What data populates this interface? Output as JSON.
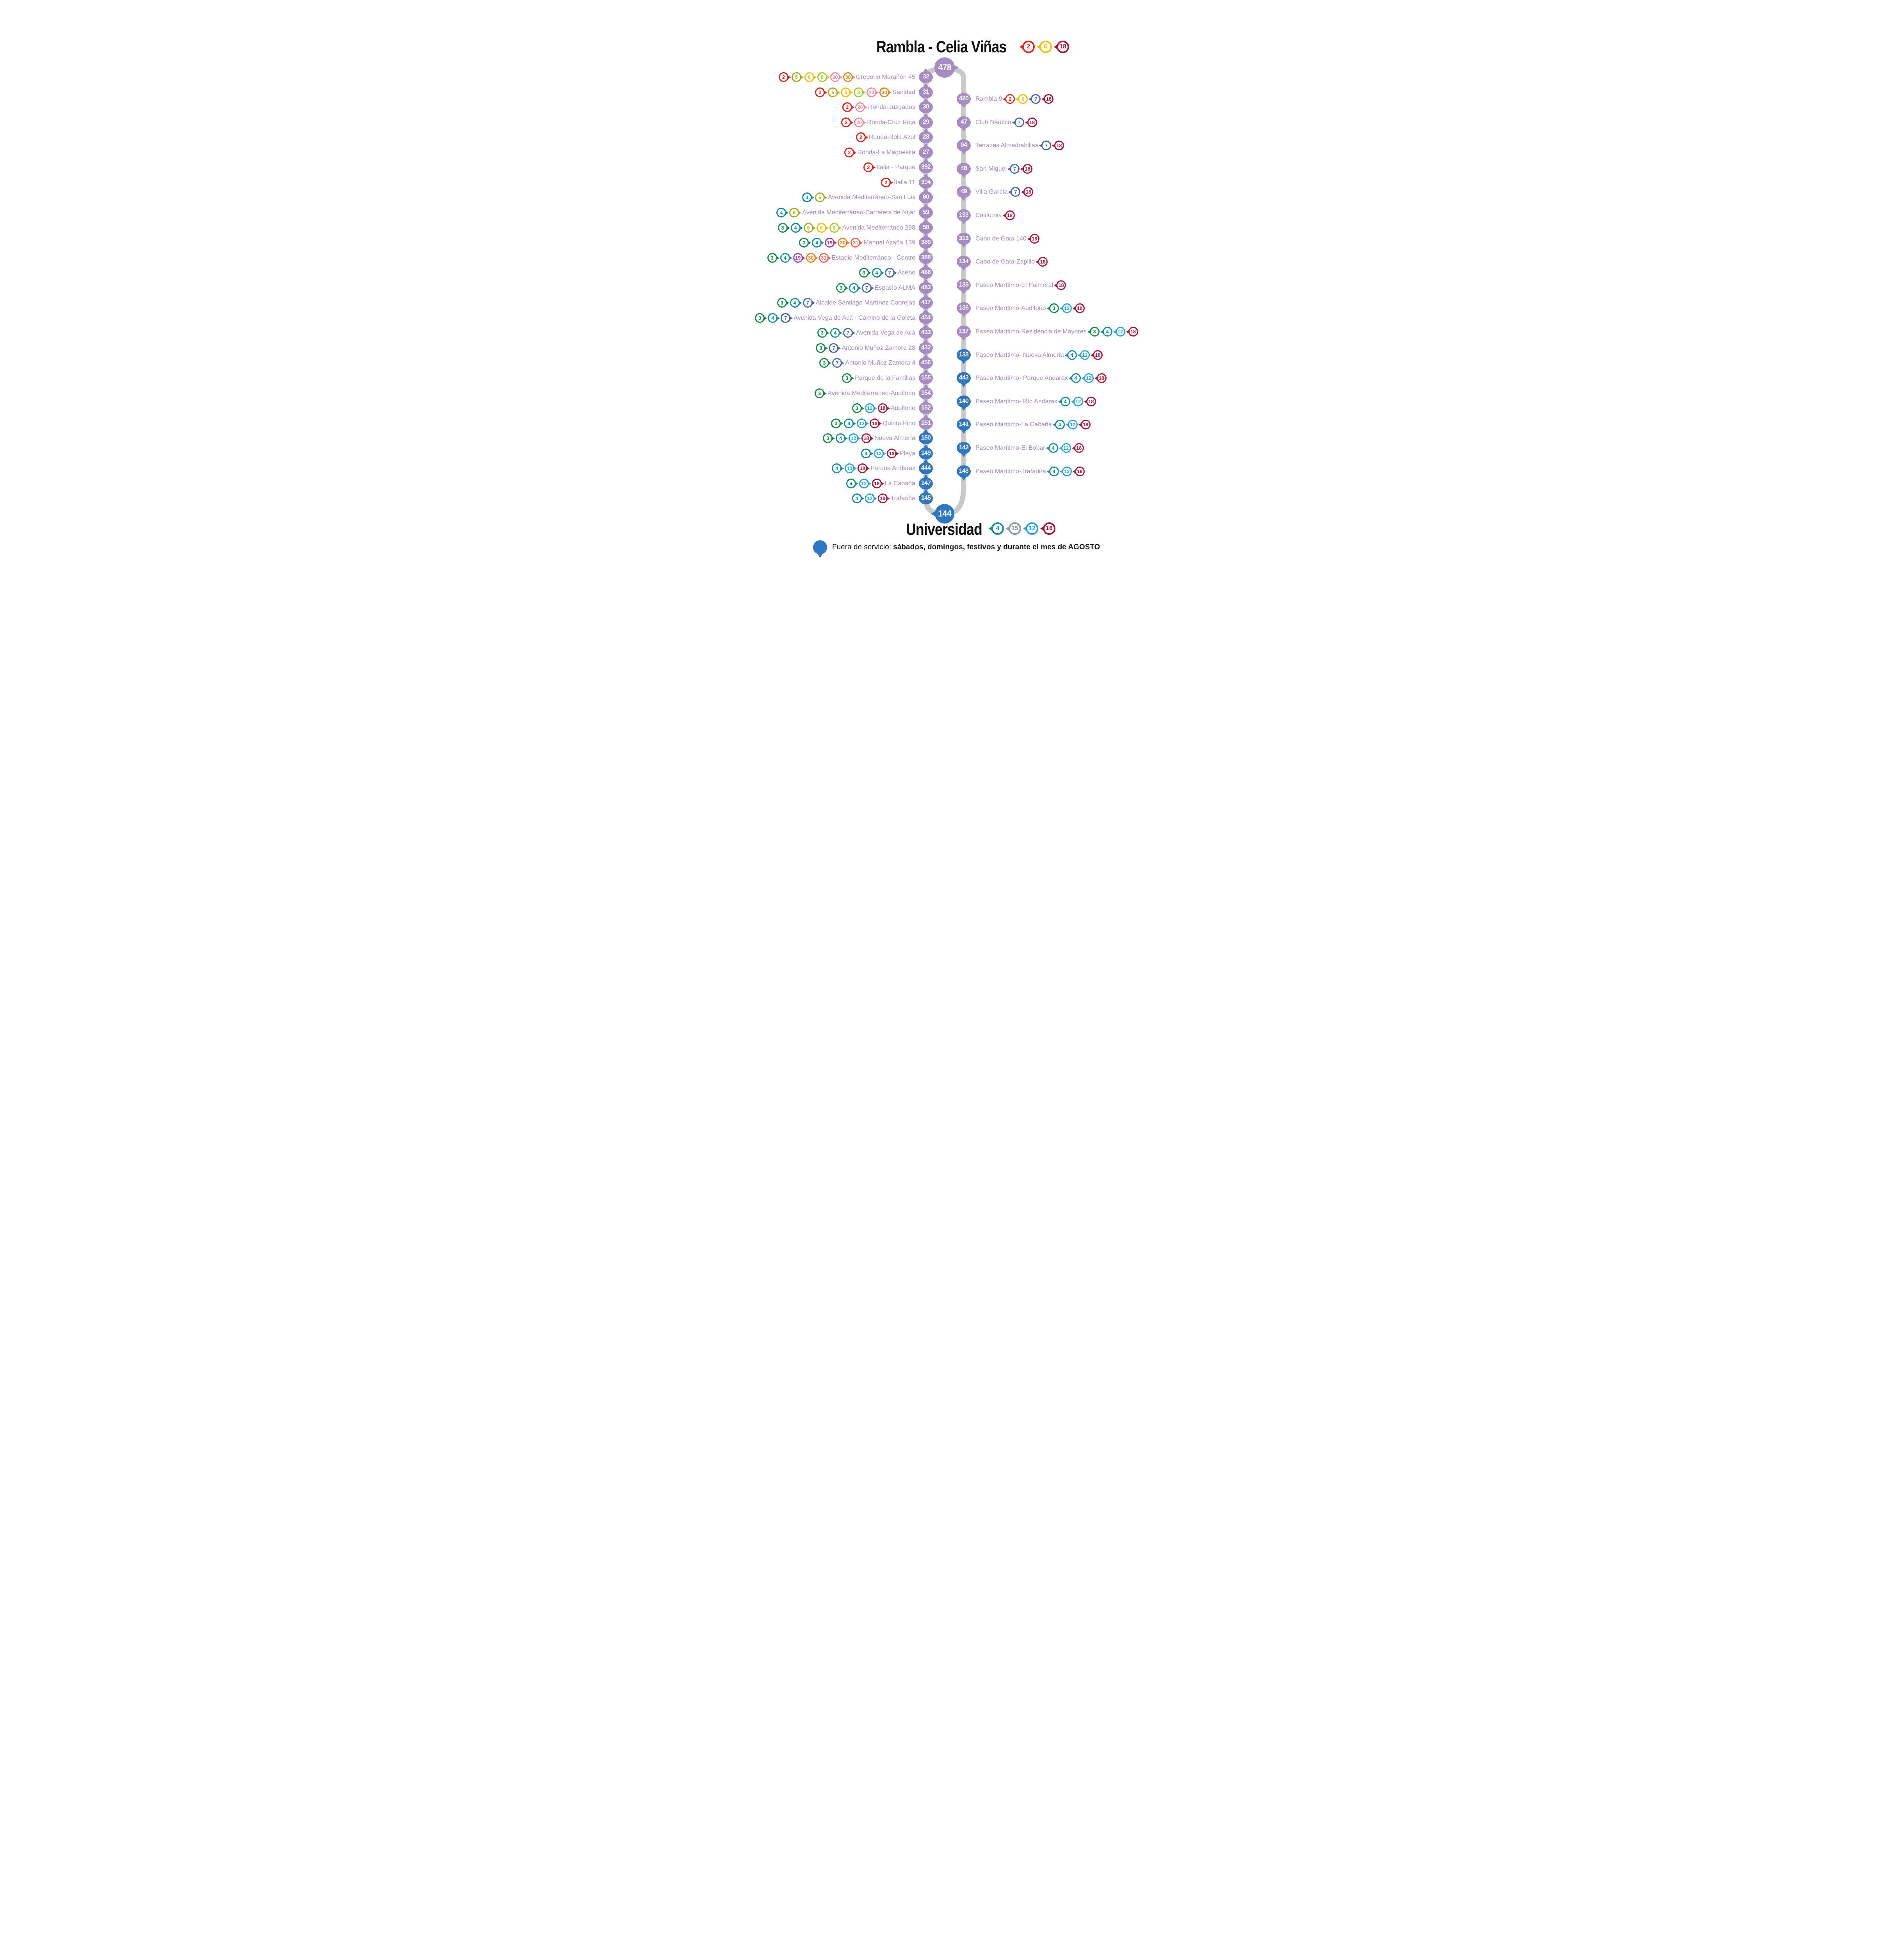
{
  "header": {
    "title": "Rambla - Celia Viñas",
    "routes": [
      "2",
      "6",
      "18"
    ]
  },
  "footer": {
    "title": "Universidad",
    "routes": [
      "4",
      "15",
      "12",
      "18"
    ]
  },
  "terminals": {
    "top": {
      "number": "478",
      "status": "normal"
    },
    "bottom": {
      "number": "144",
      "status": "out_of_service"
    }
  },
  "legend": {
    "icon": "out-of-service-pin",
    "prefix": "Fuera de servicio: ",
    "emphasis": "sábados, domingos, festivos y durante el mes de AGOSTO"
  },
  "route_colors": {
    "2": "#e3261f",
    "3": "#178c46",
    "4": "#14909d",
    "5": "#a6b024",
    "6": "#f3c104",
    "7": "#4c66af",
    "8": "#a7cb29",
    "12": "#2aa6df",
    "15": "#8e989a",
    "18": "#ab1739",
    "19": "#a53a9e",
    "20": "#f08ca3",
    "30": "#e6861c",
    "31": "#ea6456"
  },
  "colors": {
    "stop_purple": "#a68bc5",
    "stop_blue": "#2e77c0",
    "line_gray": "#c9c9c9",
    "name_text": "#a78fc8",
    "title_text": "#111111"
  },
  "stops": {
    "left": [
      {
        "number": "32",
        "name": "Gregorio Marañón 45",
        "routes": [
          "2",
          "5",
          "6",
          "8",
          "20",
          "30"
        ],
        "out_of_service": false
      },
      {
        "number": "31",
        "name": "Sanidad",
        "routes": [
          "2",
          "5",
          "6",
          "8",
          "20",
          "30"
        ],
        "out_of_service": false
      },
      {
        "number": "30",
        "name": "Ronda-Juzgados",
        "routes": [
          "2",
          "20"
        ],
        "out_of_service": false
      },
      {
        "number": "29",
        "name": "Ronda-Cruz Roja",
        "routes": [
          "2",
          "20"
        ],
        "out_of_service": false
      },
      {
        "number": "28",
        "name": "Ronda-Bola Azul",
        "routes": [
          "2"
        ],
        "out_of_service": false
      },
      {
        "number": "27",
        "name": "Ronda-La Magnesita",
        "routes": [
          "2"
        ],
        "out_of_service": false
      },
      {
        "number": "392",
        "name": "Italia - Parque",
        "routes": [
          "2"
        ],
        "out_of_service": false
      },
      {
        "number": "394",
        "name": "Italia 11",
        "routes": [
          "2"
        ],
        "out_of_service": false
      },
      {
        "number": "60",
        "name": "Avenida Mediterráneo-San Luis",
        "routes": [
          "4",
          "5"
        ],
        "out_of_service": false
      },
      {
        "number": "59",
        "name": "Avenida Mediterráneo-Carretera de Níjar",
        "routes": [
          "4",
          "5"
        ],
        "out_of_service": false
      },
      {
        "number": "58",
        "name": "Avenida Mediterráneo 298",
        "routes": [
          "3",
          "4",
          "5",
          "6",
          "8"
        ],
        "out_of_service": false
      },
      {
        "number": "389",
        "name": "Manuel Azaña 139",
        "routes": [
          "3",
          "4",
          "19",
          "30",
          "31"
        ],
        "out_of_service": false
      },
      {
        "number": "388",
        "name": "Estadio Mediterráneo - Centro",
        "routes": [
          "3",
          "4",
          "19",
          "30",
          "31"
        ],
        "out_of_service": false
      },
      {
        "number": "488",
        "name": "Acebo",
        "routes": [
          "3",
          "4",
          "7"
        ],
        "out_of_service": false
      },
      {
        "number": "483",
        "name": "Espacio ALMA",
        "routes": [
          "3",
          "4",
          "7"
        ],
        "out_of_service": false
      },
      {
        "number": "417",
        "name": "Alcalde Santiago Martínez Cabrejas",
        "routes": [
          "3",
          "4",
          "7"
        ],
        "out_of_service": false
      },
      {
        "number": "454",
        "name": "Avenida Vega de Acá - Camino de la Goleta",
        "routes": [
          "3",
          "4",
          "7"
        ],
        "out_of_service": false
      },
      {
        "number": "433",
        "name": "Avenida Vega de Acá",
        "routes": [
          "3",
          "4",
          "7"
        ],
        "out_of_service": false
      },
      {
        "number": "432",
        "name": "Antonio Muñoz Zamora 28",
        "routes": [
          "3",
          "7"
        ],
        "out_of_service": false
      },
      {
        "number": "456",
        "name": "Antonio Muñoz Zamora 4",
        "routes": [
          "3",
          "7"
        ],
        "out_of_service": false
      },
      {
        "number": "155",
        "name": "Parque de la Familias",
        "routes": [
          "3"
        ],
        "out_of_service": false
      },
      {
        "number": "154",
        "name": "Avenida Mediterráneo-Auditorio",
        "routes": [
          "3"
        ],
        "out_of_service": false
      },
      {
        "number": "152",
        "name": "Auditorio",
        "routes": [
          "3",
          "12",
          "18"
        ],
        "out_of_service": false
      },
      {
        "number": "151",
        "name": "Quinto Pino",
        "routes": [
          "3",
          "4",
          "12",
          "18"
        ],
        "out_of_service": false
      },
      {
        "number": "150",
        "name": "Nueva Almería",
        "routes": [
          "3",
          "4",
          "12",
          "18"
        ],
        "out_of_service": true
      },
      {
        "number": "149",
        "name": "Playa",
        "routes": [
          "4",
          "12",
          "18"
        ],
        "out_of_service": true
      },
      {
        "number": "444",
        "name": "Parque Andarax",
        "routes": [
          "4",
          "12",
          "18"
        ],
        "out_of_service": true
      },
      {
        "number": "147",
        "name": "La Cabaña",
        "routes": [
          "4",
          "12",
          "18"
        ],
        "out_of_service": true
      },
      {
        "number": "145",
        "name": "Trafariña",
        "routes": [
          "4",
          "12",
          "18"
        ],
        "out_of_service": true
      }
    ],
    "right": [
      {
        "number": "420",
        "name": "Rambla 9",
        "routes": [
          "2",
          "6",
          "7",
          "18"
        ],
        "out_of_service": false
      },
      {
        "number": "47",
        "name": "Club Náutico",
        "routes": [
          "7",
          "18"
        ],
        "out_of_service": false
      },
      {
        "number": "94",
        "name": "Terrazas Almadrabillas",
        "routes": [
          "7",
          "18"
        ],
        "out_of_service": false
      },
      {
        "number": "48",
        "name": "San Miguel",
        "routes": [
          "7",
          "18"
        ],
        "out_of_service": false
      },
      {
        "number": "49",
        "name": "Villa García",
        "routes": [
          "7",
          "18"
        ],
        "out_of_service": false
      },
      {
        "number": "133",
        "name": "California",
        "routes": [
          "18"
        ],
        "out_of_service": false
      },
      {
        "number": "313",
        "name": "Cabo de Gata 140",
        "routes": [
          "18"
        ],
        "out_of_service": false
      },
      {
        "number": "134",
        "name": "Cabo de Gata-Zapillo",
        "routes": [
          "18"
        ],
        "out_of_service": false
      },
      {
        "number": "135",
        "name": "Paseo Marítimo-El Palmeral",
        "routes": [
          "18"
        ],
        "out_of_service": false
      },
      {
        "number": "136",
        "name": "Paseo Marítimo-Auditorio",
        "routes": [
          "3",
          "12",
          "18"
        ],
        "out_of_service": false
      },
      {
        "number": "137",
        "name": "Paseo Marítimo-Residencia de Mayores",
        "routes": [
          "3",
          "4",
          "12",
          "18"
        ],
        "out_of_service": false
      },
      {
        "number": "138",
        "name": "Paseo Marítimo- Nueva Almería",
        "routes": [
          "4",
          "12",
          "18"
        ],
        "out_of_service": true
      },
      {
        "number": "443",
        "name": "Paseo Marítimo- Parque Andarax",
        "routes": [
          "4",
          "12",
          "18"
        ],
        "out_of_service": true
      },
      {
        "number": "140",
        "name": "Paseo Marítimo- Río Andarax",
        "routes": [
          "4",
          "12",
          "18"
        ],
        "out_of_service": true
      },
      {
        "number": "141",
        "name": "Paseo Marítimo-La Cabaña",
        "routes": [
          "4",
          "12",
          "18"
        ],
        "out_of_service": true
      },
      {
        "number": "142",
        "name": "Paseo Marítimo-El Bobar",
        "routes": [
          "4",
          "12",
          "18"
        ],
        "out_of_service": true
      },
      {
        "number": "143",
        "name": "Paseo Marítimo-Trafariña",
        "routes": [
          "4",
          "12",
          "18"
        ],
        "out_of_service": true
      }
    ]
  }
}
